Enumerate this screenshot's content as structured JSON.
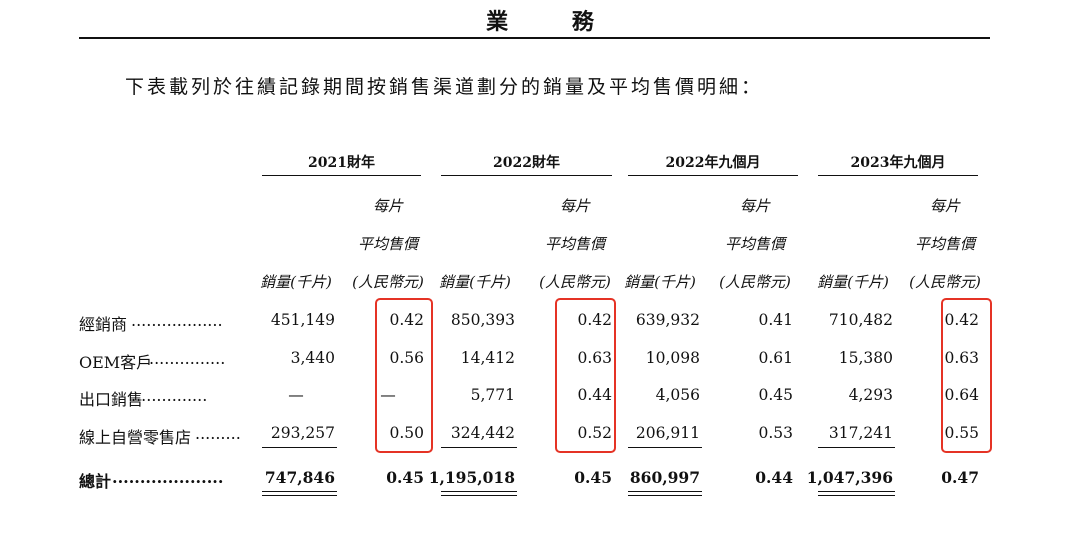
{
  "section_title": "業 務",
  "intro": "下表載列於往績記錄期間按銷售渠道劃分的銷量及平均售價明細：",
  "periods": [
    "2021財年",
    "2022財年",
    "2022年九個月",
    "2023年九個月"
  ],
  "price_header_lines": [
    "每片",
    "平均售價",
    "(人民幣元)"
  ],
  "volume_header": "銷量(千片)",
  "rows": [
    {
      "label": "經銷商",
      "leader": "..................",
      "values": [
        "451,149",
        "0.42",
        "850,393",
        "0.42",
        "639,932",
        "0.41",
        "710,482",
        "0.42"
      ]
    },
    {
      "label": "OEM客戶",
      "leader": "...............",
      "values": [
        "3,440",
        "0.56",
        "14,412",
        "0.63",
        "10,098",
        "0.61",
        "15,380",
        "0.63"
      ]
    },
    {
      "label": "出口銷售",
      "leader": "...............",
      "values": [
        "—",
        "—",
        "5,771",
        "0.44",
        "4,056",
        "0.45",
        "4,293",
        "0.64"
      ]
    },
    {
      "label": "線上自營零售店",
      "leader": ".........",
      "values": [
        "293,257",
        "0.50",
        "324,442",
        "0.52",
        "206,911",
        "0.53",
        "317,241",
        "0.55"
      ]
    }
  ],
  "total": {
    "label": "總計",
    "leader": "....................",
    "values": [
      "747,846",
      "0.45",
      "1,195,018",
      "0.45",
      "860,997",
      "0.44",
      "1,047,396",
      "0.47"
    ]
  },
  "highlight_color": "#e53325"
}
